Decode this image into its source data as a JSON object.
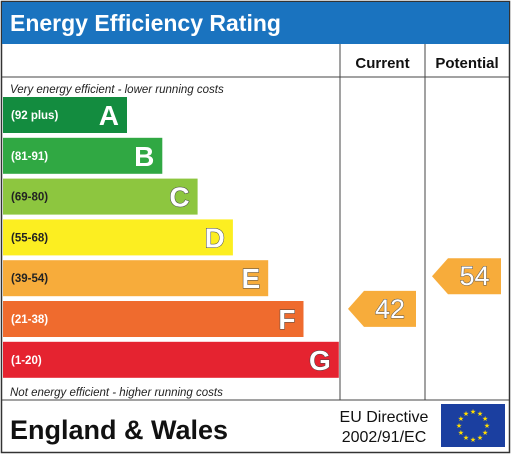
{
  "header": {
    "title": "Energy Efficiency Rating"
  },
  "columns": {
    "current": "Current",
    "potential": "Potential"
  },
  "notes": {
    "top": "Very energy efficient - lower running costs",
    "bottom": "Not energy efficient - higher running costs"
  },
  "footer": {
    "region": "England & Wales",
    "directive_line1": "EU Directive",
    "directive_line2": "2002/91/EC",
    "flag_icon": "eu-flag-icon"
  },
  "chart_data": {
    "type": "bar",
    "bands": [
      {
        "range": "(92 plus)",
        "letter": "A",
        "color": "#138c3f"
      },
      {
        "range": "(81-91)",
        "letter": "B",
        "color": "#30a843"
      },
      {
        "range": "(69-80)",
        "letter": "C",
        "color": "#8dc63f"
      },
      {
        "range": "(55-68)",
        "letter": "D",
        "color": "#fcee21"
      },
      {
        "range": "(39-54)",
        "letter": "E",
        "color": "#f7ac3b"
      },
      {
        "range": "(21-38)",
        "letter": "F",
        "color": "#ef6b2e"
      },
      {
        "range": "(1-20)",
        "letter": "G",
        "color": "#e52330"
      }
    ],
    "current": {
      "value": 42,
      "band": "E",
      "color": "#f7ac3b"
    },
    "potential": {
      "value": 54,
      "band": "E",
      "color": "#f7ac3b"
    }
  }
}
